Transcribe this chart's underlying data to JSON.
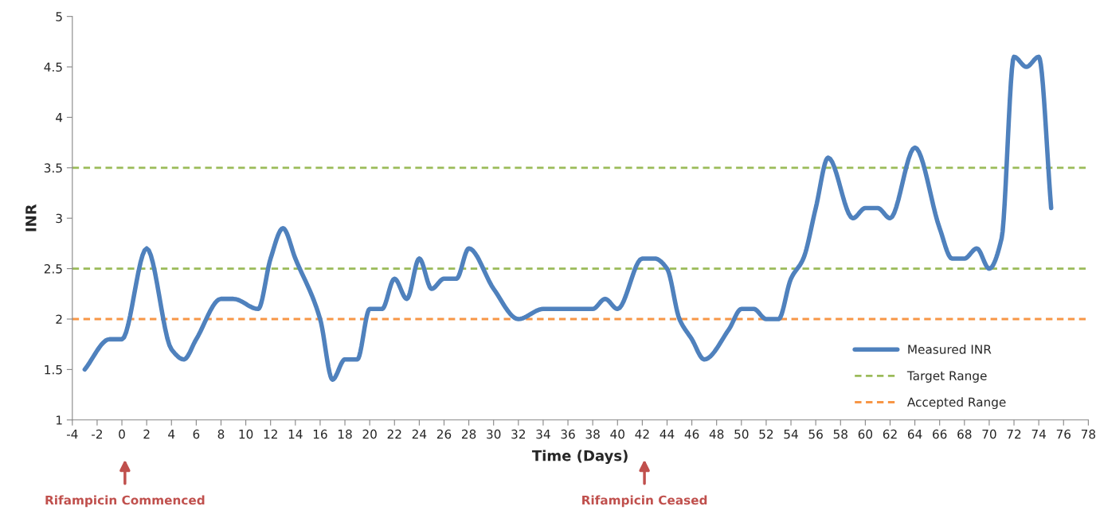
{
  "chart_data": {
    "type": "line",
    "xlabel": "Time (Days)",
    "ylabel": "INR",
    "xlim": [
      -4,
      78
    ],
    "xticks": [
      -4,
      -2,
      0,
      2,
      4,
      6,
      8,
      10,
      12,
      14,
      16,
      18,
      20,
      22,
      24,
      26,
      28,
      30,
      32,
      34,
      36,
      38,
      40,
      42,
      44,
      46,
      48,
      50,
      52,
      54,
      56,
      58,
      60,
      62,
      64,
      66,
      68,
      70,
      72,
      74,
      76,
      78
    ],
    "ylim": [
      1,
      5
    ],
    "yticks": [
      1,
      1.5,
      2,
      2.5,
      3,
      3.5,
      4,
      4.5,
      5
    ],
    "series": [
      {
        "name": "Measured INR",
        "color": "#4f81bd",
        "x": [
          -3,
          -1,
          0,
          2,
          4,
          5,
          6,
          8,
          9,
          11,
          12,
          13,
          14,
          16,
          17,
          18,
          19,
          20,
          21,
          22,
          23,
          24,
          25,
          26,
          27,
          28,
          30,
          32,
          34,
          35,
          36,
          37,
          38,
          39,
          40,
          42,
          43,
          44,
          45,
          46,
          47,
          49,
          50,
          51,
          52,
          53,
          54,
          55,
          56,
          57,
          59,
          60,
          61,
          62,
          64,
          66,
          67,
          68,
          69,
          70,
          71,
          72,
          73,
          74,
          75
        ],
        "values": [
          1.5,
          1.8,
          1.8,
          2.7,
          1.7,
          1.6,
          1.8,
          2.2,
          2.2,
          2.1,
          2.6,
          2.9,
          2.6,
          2.0,
          1.4,
          1.6,
          1.6,
          2.1,
          2.1,
          2.4,
          2.2,
          2.6,
          2.3,
          2.4,
          2.4,
          2.7,
          2.3,
          2.0,
          2.1,
          2.1,
          2.1,
          2.1,
          2.1,
          2.2,
          2.1,
          2.6,
          2.6,
          2.5,
          2.0,
          1.8,
          1.6,
          1.9,
          2.1,
          2.1,
          2.0,
          2.0,
          2.4,
          2.6,
          3.1,
          3.6,
          3.0,
          3.1,
          3.1,
          3.0,
          3.7,
          2.9,
          2.6,
          2.6,
          2.7,
          2.5,
          2.8,
          4.6,
          4.5,
          4.6,
          3.1
        ]
      }
    ],
    "ref_lines": [
      {
        "axis": "y",
        "value": 3.5,
        "label": "Target Range",
        "color": "#9bbb59",
        "line_style": "dashed"
      },
      {
        "axis": "y",
        "value": 2.5,
        "color": "#9bbb59",
        "line_style": "dashed"
      },
      {
        "axis": "y",
        "value": 2,
        "label": "Accepted Range",
        "color": "#f79646",
        "line_style": "dashed"
      }
    ],
    "annotations": [
      "Rifampicin Commenced",
      "Rifampicin Ceased"
    ],
    "legend": "bottom right",
    "grid": false,
    "marker": "none",
    "line_style": "solid"
  }
}
